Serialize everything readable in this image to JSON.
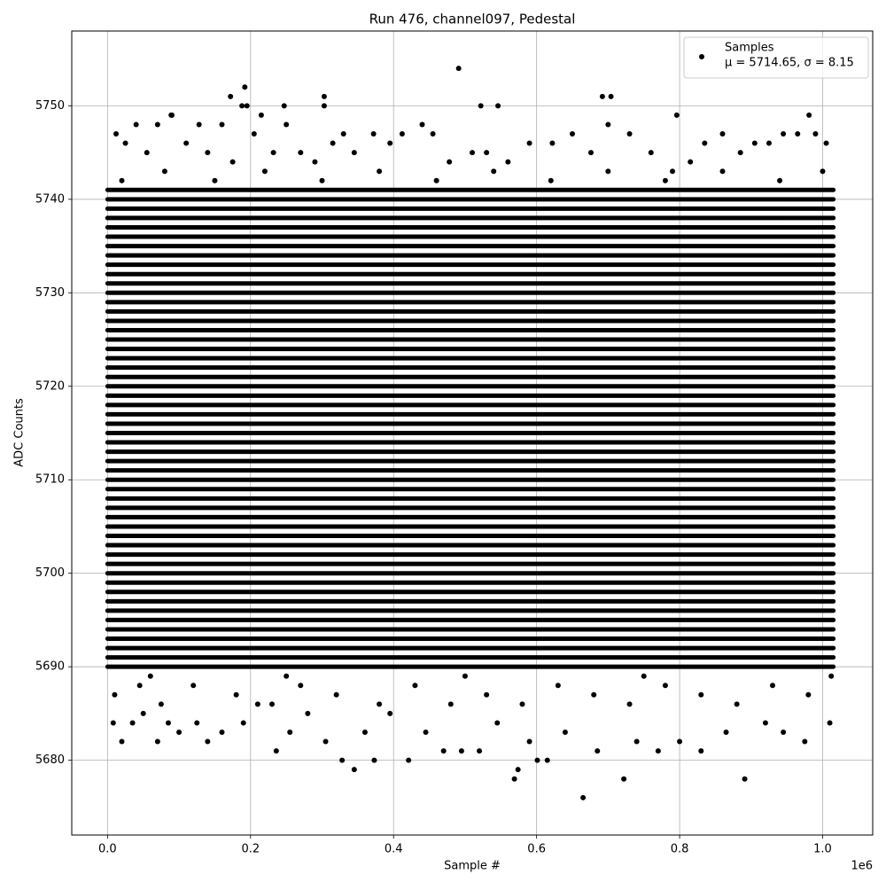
{
  "chart_data": {
    "type": "scatter",
    "title": "Run 476, channel097, Pedestal",
    "xlabel": "Sample #",
    "ylabel": "ADC Counts",
    "x_offset_label": "1e6",
    "xlim": [
      -50000,
      1070000
    ],
    "ylim": [
      5672,
      5758
    ],
    "xticks": [
      {
        "value": 0,
        "label": "0.0"
      },
      {
        "value": 200000,
        "label": "0.2"
      },
      {
        "value": 400000,
        "label": "0.4"
      },
      {
        "value": 600000,
        "label": "0.6"
      },
      {
        "value": 800000,
        "label": "0.8"
      },
      {
        "value": 1000000,
        "label": "1.0"
      }
    ],
    "yticks": [
      5680,
      5690,
      5700,
      5710,
      5720,
      5730,
      5740,
      5750
    ],
    "grid": true,
    "legend": "upper right",
    "legend_stats": "μ = 5714.65, σ = 8.15",
    "dense_levels": {
      "x_range": [
        0,
        1015000
      ],
      "values": [
        5690,
        5691,
        5692,
        5693,
        5694,
        5695,
        5696,
        5697,
        5698,
        5699,
        5700,
        5701,
        5702,
        5703,
        5704,
        5705,
        5706,
        5707,
        5708,
        5709,
        5710,
        5711,
        5712,
        5713,
        5714,
        5715,
        5716,
        5717,
        5718,
        5719,
        5720,
        5721,
        5722,
        5723,
        5724,
        5725,
        5726,
        5727,
        5728,
        5729,
        5730,
        5731,
        5732,
        5733,
        5734,
        5735,
        5736,
        5737,
        5738,
        5739,
        5740,
        5741
      ]
    },
    "x": [
      491000,
      192000,
      172000,
      303000,
      692000,
      704000,
      522000,
      546000,
      303000,
      247000,
      188000,
      195000,
      796000,
      89000,
      981000,
      12000,
      25000,
      40000,
      55000,
      70000,
      90000,
      110000,
      128000,
      140000,
      160000,
      175000,
      205000,
      215000,
      232000,
      250000,
      270000,
      290000,
      315000,
      330000,
      345000,
      372000,
      395000,
      412000,
      440000,
      455000,
      478000,
      510000,
      530000,
      560000,
      590000,
      622000,
      650000,
      676000,
      700000,
      730000,
      760000,
      790000,
      815000,
      835000,
      860000,
      885000,
      905000,
      925000,
      945000,
      965000,
      990000,
      1005000,
      20000,
      80000,
      150000,
      220000,
      300000,
      380000,
      460000,
      540000,
      620000,
      700000,
      780000,
      860000,
      940000,
      1000000,
      8000,
      20000,
      35000,
      50000,
      70000,
      85000,
      100000,
      125000,
      140000,
      160000,
      190000,
      210000,
      236000,
      255000,
      280000,
      305000,
      328000,
      345000,
      360000,
      373000,
      395000,
      421000,
      445000,
      470000,
      495000,
      520000,
      545000,
      569000,
      574000,
      590000,
      601000,
      615000,
      640000,
      665000,
      685000,
      722000,
      740000,
      770000,
      800000,
      830000,
      865000,
      891000,
      920000,
      945000,
      975000,
      1010000,
      10000,
      45000,
      75000,
      120000,
      180000,
      230000,
      270000,
      320000,
      380000,
      430000,
      480000,
      530000,
      580000,
      630000,
      680000,
      730000,
      780000,
      830000,
      880000,
      930000,
      980000,
      1012000,
      250000,
      500000,
      750000,
      60000
    ],
    "series": [
      {
        "name": "Samples",
        "color": "#000000",
        "values": [
          5754,
          5752,
          5751,
          5751,
          5751,
          5751,
          5750,
          5750,
          5750,
          5750,
          5750,
          5750,
          5749,
          5749,
          5749,
          5747,
          5746,
          5748,
          5745,
          5748,
          5749,
          5746,
          5748,
          5745,
          5748,
          5744,
          5747,
          5749,
          5745,
          5748,
          5745,
          5744,
          5746,
          5747,
          5745,
          5747,
          5746,
          5747,
          5748,
          5747,
          5744,
          5745,
          5745,
          5744,
          5746,
          5746,
          5747,
          5745,
          5748,
          5747,
          5745,
          5743,
          5744,
          5746,
          5747,
          5745,
          5746,
          5746,
          5747,
          5747,
          5747,
          5746,
          5742,
          5743,
          5742,
          5743,
          5742,
          5743,
          5742,
          5743,
          5742,
          5743,
          5742,
          5743,
          5742,
          5743,
          5684,
          5682,
          5684,
          5685,
          5682,
          5684,
          5683,
          5684,
          5682,
          5683,
          5684,
          5686,
          5681,
          5683,
          5685,
          5682,
          5680,
          5679,
          5683,
          5680,
          5685,
          5680,
          5683,
          5681,
          5681,
          5681,
          5684,
          5678,
          5679,
          5682,
          5680,
          5680,
          5683,
          5676,
          5681,
          5678,
          5682,
          5681,
          5682,
          5681,
          5683,
          5678,
          5684,
          5683,
          5682,
          5684,
          5687,
          5688,
          5686,
          5688,
          5687,
          5686,
          5688,
          5687,
          5686,
          5688,
          5686,
          5687,
          5686,
          5688,
          5687,
          5686,
          5688,
          5687,
          5686,
          5688,
          5687,
          5689,
          5689,
          5689,
          5689,
          5689
        ]
      }
    ]
  }
}
